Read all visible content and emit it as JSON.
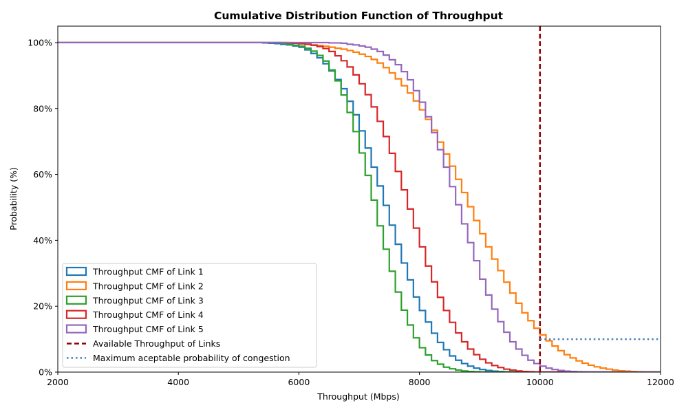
{
  "chart_data": {
    "type": "line",
    "style": "step-cumulative",
    "title": "Cumulative Distribution Function of Throughput",
    "xlabel": "Throughput (Mbps)",
    "ylabel": "Probability (%)",
    "xlim": [
      2000,
      12000
    ],
    "ylim": [
      0,
      105
    ],
    "xticks": [
      2000,
      4000,
      6000,
      8000,
      10000,
      12000
    ],
    "xtick_labels": [
      "2000",
      "4000",
      "6000",
      "8000",
      "10000",
      "12000"
    ],
    "yticks": [
      0,
      20,
      40,
      60,
      80,
      100
    ],
    "ytick_labels": [
      "0%",
      "20%",
      "40%",
      "60%",
      "80%",
      "100%"
    ],
    "grid": false,
    "legend_position": "lower-left",
    "series": [
      {
        "name": "Throughput CMF of Link 1",
        "color": "#1f77b4",
        "x": [
          5400,
          5500,
          5600,
          5700,
          5800,
          5900,
          6000,
          6100,
          6200,
          6300,
          6400,
          6500,
          6600,
          6700,
          6800,
          6900,
          7000,
          7100,
          7200,
          7300,
          7400,
          7500,
          7600,
          7700,
          7800,
          7900,
          8000,
          8100,
          8200,
          8300,
          8400,
          8500,
          8600,
          8700,
          8800,
          8900,
          9000,
          9100,
          9200,
          9300,
          9400,
          9500,
          9600,
          9700,
          9800
        ],
        "y": [
          100,
          99.9,
          99.8,
          99.7,
          99.5,
          99.3,
          99.0,
          98.6,
          97.8,
          96.7,
          95.4,
          93.6,
          91.4,
          88.8,
          86.0,
          82.2,
          78.1,
          73.2,
          68.0,
          62.2,
          56.5,
          50.6,
          44.6,
          38.8,
          33.1,
          28.0,
          22.8,
          18.7,
          15.2,
          11.8,
          9.0,
          6.8,
          4.9,
          3.6,
          2.6,
          1.8,
          1.2,
          0.8,
          0.5,
          0.3,
          0.2,
          0.1,
          0.05,
          0.02,
          0
        ]
      },
      {
        "name": "Throughput CMF of Link 2",
        "color": "#ff7f0e",
        "x": [
          5900,
          6000,
          6100,
          6200,
          6300,
          6400,
          6500,
          6600,
          6700,
          6800,
          6900,
          7000,
          7100,
          7200,
          7300,
          7400,
          7500,
          7600,
          7700,
          7800,
          7900,
          8000,
          8100,
          8200,
          8300,
          8400,
          8500,
          8600,
          8700,
          8800,
          8900,
          9000,
          9100,
          9200,
          9300,
          9400,
          9500,
          9600,
          9700,
          9800,
          9900,
          10000,
          10100,
          10200,
          10300,
          10400,
          10500,
          10600,
          10700,
          10800,
          10900,
          11000,
          11100,
          11200,
          11300,
          11400,
          11500,
          11600,
          11700,
          11800,
          11900,
          12000
        ],
        "y": [
          100,
          99.8,
          99.6,
          99.5,
          99.3,
          99.1,
          98.9,
          98.6,
          98.3,
          98.0,
          97.6,
          97.1,
          96.5,
          95.8,
          94.9,
          93.8,
          92.4,
          90.8,
          89.0,
          86.9,
          84.7,
          82.3,
          79.6,
          76.7,
          73.4,
          69.8,
          66.2,
          62.5,
          58.5,
          54.5,
          50.2,
          46.0,
          42.0,
          38.0,
          34.3,
          30.8,
          27.3,
          24.0,
          20.9,
          18.0,
          15.6,
          13.3,
          11.3,
          9.5,
          7.9,
          6.5,
          5.3,
          4.3,
          3.4,
          2.7,
          2.1,
          1.6,
          1.2,
          0.9,
          0.6,
          0.4,
          0.3,
          0.2,
          0.1,
          0.05,
          0.02,
          0
        ]
      },
      {
        "name": "Throughput CMF of Link 3",
        "color": "#2ca02c",
        "x": [
          5700,
          5800,
          5900,
          6000,
          6100,
          6200,
          6300,
          6400,
          6500,
          6600,
          6700,
          6800,
          6900,
          7000,
          7100,
          7200,
          7300,
          7400,
          7500,
          7600,
          7700,
          7800,
          7900,
          8000,
          8100,
          8200,
          8300,
          8400,
          8500,
          8600,
          8700,
          8800,
          8900,
          9000,
          9100,
          9200
        ],
        "y": [
          100,
          99.8,
          99.5,
          99.2,
          98.9,
          98.3,
          97.4,
          96.1,
          94.4,
          91.7,
          88.4,
          84.1,
          78.8,
          73.0,
          66.5,
          59.7,
          52.2,
          44.4,
          37.3,
          30.6,
          24.3,
          18.8,
          14.3,
          10.4,
          7.4,
          5.2,
          3.5,
          2.4,
          1.5,
          1.0,
          0.6,
          0.35,
          0.2,
          0.1,
          0.03,
          0
        ]
      },
      {
        "name": "Throughput CMF of Link 4",
        "color": "#d62728",
        "x": [
          5800,
          5900,
          6000,
          6100,
          6200,
          6300,
          6400,
          6500,
          6600,
          6700,
          6800,
          6900,
          7000,
          7100,
          7200,
          7300,
          7400,
          7500,
          7600,
          7700,
          7800,
          7900,
          8000,
          8100,
          8200,
          8300,
          8400,
          8500,
          8600,
          8700,
          8800,
          8900,
          9000,
          9100,
          9200,
          9300,
          9400,
          9500,
          9600,
          9700,
          9800,
          9900,
          10000
        ],
        "y": [
          100,
          99.9,
          99.8,
          99.7,
          99.5,
          99.2,
          98.8,
          98.2,
          97.3,
          96.0,
          94.5,
          92.6,
          90.2,
          87.5,
          84.2,
          80.5,
          76.1,
          71.5,
          66.4,
          60.9,
          55.3,
          49.5,
          43.7,
          38.0,
          32.2,
          27.4,
          22.7,
          18.7,
          15.1,
          11.9,
          9.2,
          7.0,
          5.3,
          3.9,
          2.8,
          2.0,
          1.4,
          0.9,
          0.6,
          0.35,
          0.2,
          0.1,
          0
        ]
      },
      {
        "name": "Throughput CMF of Link 5",
        "color": "#9467bd",
        "x": [
          6500,
          6600,
          6700,
          6800,
          6900,
          7000,
          7100,
          7200,
          7300,
          7400,
          7500,
          7600,
          7700,
          7800,
          7900,
          8000,
          8100,
          8200,
          8300,
          8400,
          8500,
          8600,
          8700,
          8800,
          8900,
          9000,
          9100,
          9200,
          9300,
          9400,
          9500,
          9600,
          9700,
          9800,
          9900,
          10000,
          10100,
          10200,
          10300,
          10400,
          10500,
          10600,
          10700,
          10800,
          10900
        ],
        "y": [
          100,
          99.9,
          99.9,
          99.8,
          99.5,
          99.3,
          99.0,
          98.6,
          98.0,
          97.3,
          96.2,
          94.8,
          93.3,
          91.2,
          88.7,
          85.4,
          81.9,
          77.5,
          72.7,
          67.5,
          62.2,
          56.3,
          50.8,
          45.0,
          39.3,
          33.8,
          28.2,
          23.4,
          19.1,
          15.3,
          12.1,
          9.2,
          7.0,
          5.1,
          3.6,
          2.6,
          1.8,
          1.2,
          0.8,
          0.5,
          0.3,
          0.2,
          0.1,
          0.05,
          0
        ]
      },
      {
        "name": "Available Throughput of Links",
        "color": "#8b0000",
        "linestyle": "dashed",
        "type": "vertical-line",
        "x_value": 10000
      },
      {
        "name": "Maximum aceptable probability of congestion",
        "color": "#4a7fb5",
        "linestyle": "dotted",
        "type": "horizontal-line",
        "y_value": 10,
        "x_range": [
          10000,
          12000
        ]
      }
    ]
  }
}
